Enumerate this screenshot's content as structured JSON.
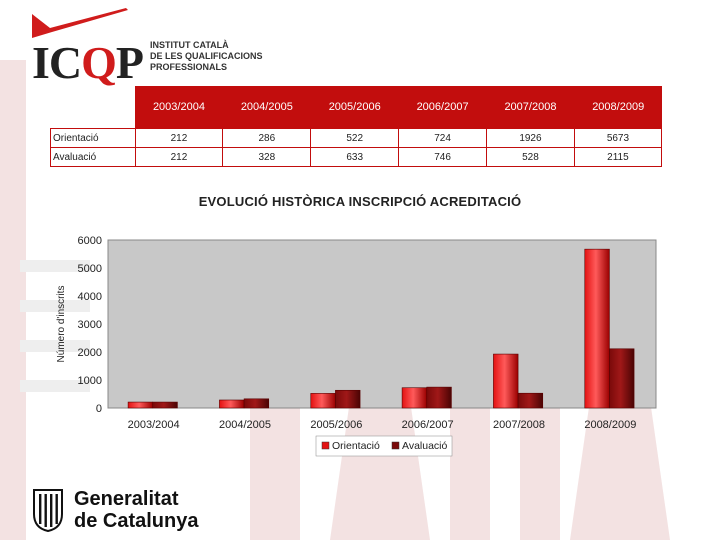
{
  "header": {
    "logo_letters": "ICQP",
    "logo_subtitle": [
      "INSTITUT CATALÀ",
      "DE LES QUALIFICACIONS",
      "PROFESSIONALS"
    ]
  },
  "table": {
    "columns": [
      "2003/2004",
      "2004/2005",
      "2005/2006",
      "2006/2007",
      "2007/2008",
      "2008/2009"
    ],
    "rows": [
      {
        "label": "Orientació",
        "values": [
          "212",
          "286",
          "522",
          "724",
          "1926",
          "5673"
        ]
      },
      {
        "label": "Avaluació",
        "values": [
          "212",
          "328",
          "633",
          "746",
          "528",
          "2115"
        ]
      }
    ]
  },
  "chart_data": {
    "type": "bar",
    "title": "EVOLUCIÓ HISTÒRICA INSCRIPCIÓ ACREDITACIÓ",
    "ylabel": "Número d'inscrits",
    "xlabel": "",
    "categories": [
      "2003/2004",
      "2004/2005",
      "2005/2006",
      "2006/2007",
      "2007/2008",
      "2008/2009"
    ],
    "series": [
      {
        "name": "Orientació",
        "values": [
          212,
          286,
          522,
          724,
          1926,
          5673
        ],
        "color": "#e31212"
      },
      {
        "name": "Avaluació",
        "values": [
          212,
          328,
          633,
          746,
          528,
          2115
        ],
        "color": "#7a0a0a"
      }
    ],
    "ylim": [
      0,
      6000
    ],
    "yticks": [
      0,
      1000,
      2000,
      3000,
      4000,
      5000,
      6000
    ],
    "grid": false,
    "legend": "bottom",
    "plot_background": "#c8c8c8"
  },
  "footer": {
    "brand_lines": [
      "Generalitat",
      "de Catalunya"
    ]
  },
  "colors": {
    "accent": "#c20d0d",
    "deco": "#f6e7e7"
  }
}
